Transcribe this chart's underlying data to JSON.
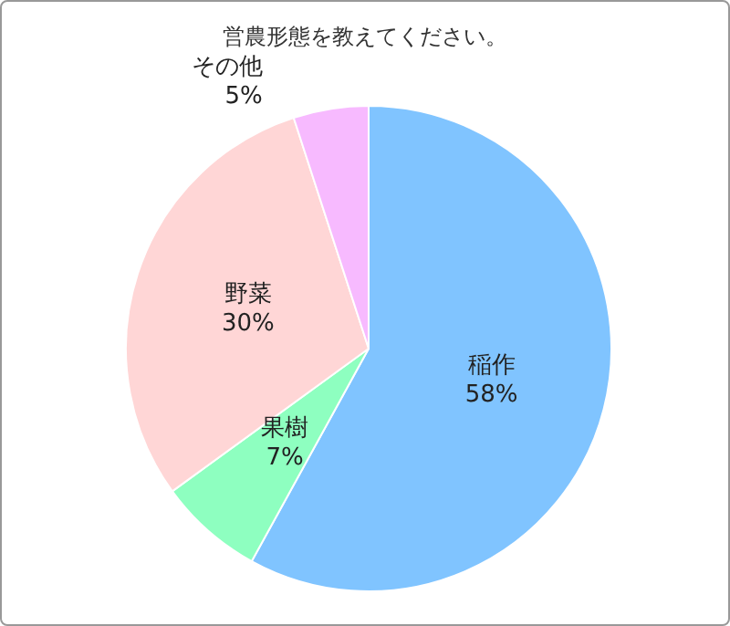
{
  "chart_data": {
    "type": "pie",
    "title": "営農形態を教えてください。",
    "categories": [
      "稲作",
      "果樹",
      "野菜",
      "その他"
    ],
    "values": [
      58,
      7,
      30,
      5
    ],
    "colors": [
      "#80c4ff",
      "#8effc0",
      "#ffd6d6",
      "#f7baff"
    ],
    "value_labels": [
      "58%",
      "7%",
      "30%",
      "5%"
    ],
    "legend": false
  }
}
